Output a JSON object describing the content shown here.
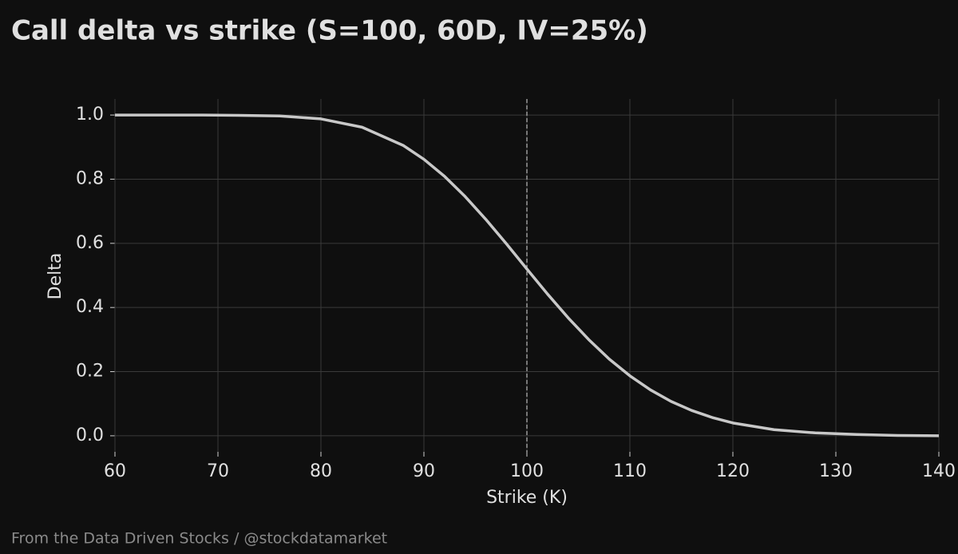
{
  "chart_data": {
    "type": "line",
    "title": "Call delta vs strike (S=100, 60D, IV=25%)",
    "x_label": "Strike (K)",
    "y_label": "Delta",
    "source": "From the Data Driven Stocks / @stockdatamarket",
    "x": [
      60,
      64,
      68,
      72,
      76,
      80,
      84,
      88,
      90,
      92,
      94,
      96,
      98,
      100,
      102,
      104,
      106,
      108,
      110,
      112,
      114,
      116,
      118,
      120,
      124,
      128,
      132,
      136,
      140
    ],
    "values": [
      1.0,
      1.0,
      1.0,
      0.999,
      0.997,
      0.988,
      0.962,
      0.905,
      0.862,
      0.809,
      0.746,
      0.675,
      0.599,
      0.52,
      0.442,
      0.368,
      0.3,
      0.239,
      0.187,
      0.143,
      0.107,
      0.079,
      0.057,
      0.04,
      0.019,
      0.009,
      0.004,
      0.001,
      0.0
    ],
    "color": "#c8c8c8",
    "vline": 100,
    "xlim": [
      60,
      140
    ],
    "ylim": [
      -0.05,
      1.05
    ],
    "xticks": [
      60,
      70,
      80,
      90,
      100,
      110,
      120,
      130,
      140
    ],
    "yticks": [
      {
        "value": 0,
        "label": "0.0"
      },
      0.2,
      0.4,
      0.6,
      0.8,
      {
        "value": 1,
        "label": "1.0"
      }
    ],
    "grid": true
  }
}
